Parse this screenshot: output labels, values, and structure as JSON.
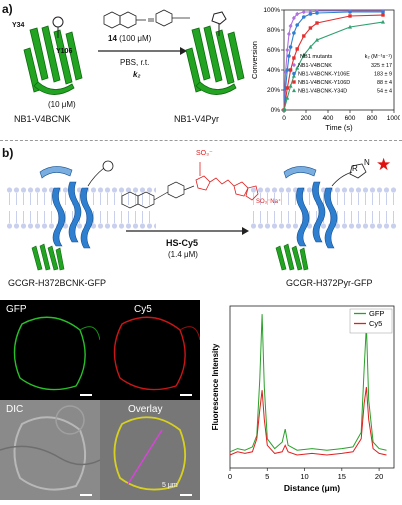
{
  "panel_a": {
    "label": "a)",
    "residue_y34": "Y34",
    "residue_y106": "Y106",
    "reagent": "14",
    "reagent_conc": "(100 μM)",
    "conditions": "PBS, r.t.",
    "rate_symbol": "k₂",
    "protein_conc": "(10 μM)",
    "protein_left": "NB1-V4BCNK",
    "protein_right": "NB1-V4Pyr",
    "colors": {
      "protein": "#22a322",
      "purple": "#b070e0",
      "blue": "#2f7fd0",
      "red": "#e03030",
      "green": "#2fa06f"
    }
  },
  "chart_data": {
    "type": "line",
    "title": "",
    "xlabel": "Time (s)",
    "ylabel": "Conversion",
    "xlim": [
      0,
      1000
    ],
    "ylim": [
      0,
      100
    ],
    "x_ticks": [
      0,
      200,
      400,
      600,
      800,
      1000
    ],
    "y_ticks": [
      "0%",
      "20%",
      "40%",
      "60%",
      "80%",
      "100%"
    ],
    "legend_title": "NB1 mutants",
    "legend_header_k2": "k₂ (M⁻¹s⁻¹)",
    "legend_position": "center-right",
    "series": [
      {
        "name": "NB1-V4BCNK",
        "k2": "325 ± 17",
        "color": "#b070e0",
        "marker": "diamond",
        "x": [
          0,
          15,
          30,
          45,
          60,
          90,
          120,
          180,
          240,
          300,
          600,
          900
        ],
        "y": [
          0,
          38,
          60,
          76,
          84,
          92,
          96,
          98,
          98,
          99,
          99,
          99
        ]
      },
      {
        "name": "NB1-V4BCNK-Y106E",
        "k2": "183 ± 9",
        "color": "#2f7fd0",
        "marker": "circle",
        "x": [
          0,
          15,
          30,
          45,
          60,
          90,
          120,
          180,
          240,
          300,
          600,
          900
        ],
        "y": [
          0,
          22,
          40,
          54,
          63,
          77,
          85,
          93,
          96,
          97,
          98,
          98
        ]
      },
      {
        "name": "NB1-V4BCNK-Y106D",
        "k2": "88 ± 4",
        "color": "#e03030",
        "marker": "square",
        "x": [
          0,
          30,
          60,
          90,
          120,
          180,
          240,
          300,
          600,
          900
        ],
        "y": [
          0,
          22,
          40,
          52,
          61,
          74,
          82,
          87,
          94,
          95
        ]
      },
      {
        "name": "NB1-V4BCNK-Y34D",
        "k2": "54 ± 4",
        "color": "#2fa06f",
        "marker": "triangle",
        "x": [
          0,
          30,
          60,
          90,
          120,
          180,
          240,
          300,
          600,
          900
        ],
        "y": [
          0,
          12,
          24,
          34,
          42,
          55,
          63,
          70,
          83,
          88
        ]
      }
    ]
  },
  "panel_b": {
    "label": "b)",
    "probe": "HS-Cy5",
    "probe_conc": "(1.4 μM)",
    "so3": "SO₃⁻",
    "so3na": "SO₃⁻Na⁺",
    "substituent_r": "R",
    "substituent_n": "N",
    "receptor_left": "GCGR-H372BCNK-GFP",
    "receptor_right": "GCGR-H372Pyr-GFP",
    "micro_labels": [
      "GFP",
      "Cy5",
      "DIC",
      "Overlay"
    ],
    "scale_bar": "5 μm"
  },
  "profile_chart": {
    "type": "line",
    "xlabel": "Distance (μm)",
    "ylabel": "Fluorescence Intensity",
    "xlim": [
      0,
      22
    ],
    "x_ticks": [
      0,
      5,
      10,
      15,
      20
    ],
    "legend": [
      {
        "name": "GFP",
        "color": "#2aa02a"
      },
      {
        "name": "Cy5",
        "color": "#e02020"
      }
    ],
    "series": [
      {
        "name": "GFP",
        "color": "#2aa02a",
        "x": [
          0,
          1,
          2,
          3,
          3.6,
          4.0,
          4.3,
          4.6,
          5,
          6,
          7,
          7.4,
          7.8,
          9,
          11,
          13,
          15,
          16.5,
          17.6,
          18.0,
          18.3,
          18.6,
          19.2,
          20,
          21
        ],
        "y": [
          0.1,
          0.12,
          0.11,
          0.13,
          0.2,
          0.55,
          0.95,
          0.5,
          0.18,
          0.12,
          0.16,
          0.24,
          0.14,
          0.11,
          0.12,
          0.11,
          0.12,
          0.13,
          0.22,
          0.62,
          0.88,
          0.42,
          0.16,
          0.12,
          0.11
        ]
      },
      {
        "name": "Cy5",
        "color": "#e02020",
        "x": [
          0,
          1,
          2,
          3,
          3.6,
          4.0,
          4.3,
          4.6,
          5,
          6,
          7,
          7.4,
          7.8,
          9,
          11,
          13,
          15,
          16.5,
          17.6,
          18.0,
          18.3,
          18.6,
          19.2,
          20,
          21
        ],
        "y": [
          0.08,
          0.1,
          0.09,
          0.1,
          0.18,
          0.36,
          0.48,
          0.3,
          0.14,
          0.09,
          0.1,
          0.14,
          0.1,
          0.08,
          0.09,
          0.08,
          0.09,
          0.1,
          0.18,
          0.4,
          0.5,
          0.3,
          0.12,
          0.09,
          0.08
        ]
      }
    ]
  }
}
